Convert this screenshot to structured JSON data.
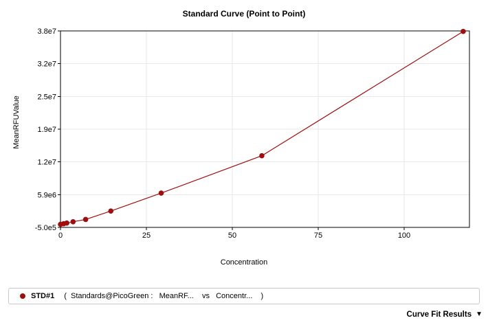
{
  "chart_data": {
    "type": "line",
    "title": "Standard Curve (Point to Point)",
    "xlabel": "Concentration",
    "ylabel": "MeanRFUValue",
    "xlim": [
      0,
      119
    ],
    "ylim": [
      -500000,
      37900000
    ],
    "grid": true,
    "legend_position": "bottom",
    "x_ticks": [
      {
        "value": 0,
        "label": "0"
      },
      {
        "value": 25,
        "label": "25"
      },
      {
        "value": 50,
        "label": "50"
      },
      {
        "value": 75,
        "label": "75"
      },
      {
        "value": 100,
        "label": "100"
      }
    ],
    "y_ticks": [
      {
        "value": -500000,
        "label": "-5.0e5"
      },
      {
        "value": 5900000,
        "label": "5.9e6"
      },
      {
        "value": 12300000,
        "label": "1.2e7"
      },
      {
        "value": 18700000,
        "label": "1.9e7"
      },
      {
        "value": 25100000,
        "label": "2.5e7"
      },
      {
        "value": 31500000,
        "label": "3.2e7"
      },
      {
        "value": 37900000,
        "label": "3.8e7"
      }
    ],
    "series": [
      {
        "name": "STD#1",
        "color": "#a00d0f",
        "marker": "circle",
        "points": [
          [
            0,
            100000
          ],
          [
            0.92,
            220000
          ],
          [
            1.83,
            350000
          ],
          [
            3.66,
            600000
          ],
          [
            7.32,
            1050000
          ],
          [
            14.65,
            2700000
          ],
          [
            29.3,
            6200000
          ],
          [
            58.59,
            13500000
          ],
          [
            117.19,
            37800000
          ]
        ]
      }
    ]
  },
  "legend": {
    "series_name": "STD#1",
    "description": "(  Standards@PicoGreen :   MeanRF...    vs   Concentr...    )"
  },
  "footer": {
    "curve_fit_label": "Curve Fit Results",
    "chevron": "▼"
  },
  "colors": {
    "series": "#a00d0f",
    "grid": "#e7e7e7",
    "axis": "#000000",
    "legend_border": "#c9c9c9",
    "background": "#ffffff"
  }
}
